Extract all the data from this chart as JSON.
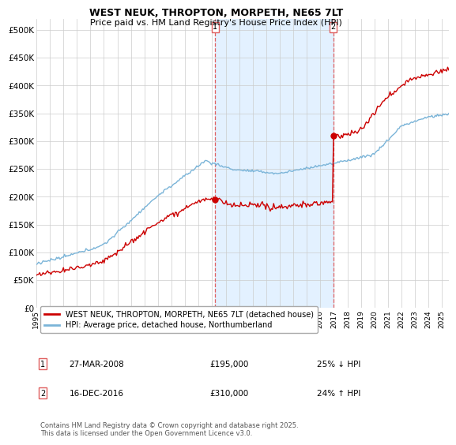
{
  "title": "WEST NEUK, THROPTON, MORPETH, NE65 7LT",
  "subtitle": "Price paid vs. HM Land Registry's House Price Index (HPI)",
  "ylabel_ticks": [
    "£0",
    "£50K",
    "£100K",
    "£150K",
    "£200K",
    "£250K",
    "£300K",
    "£350K",
    "£400K",
    "£450K",
    "£500K"
  ],
  "ytick_values": [
    0,
    50000,
    100000,
    150000,
    200000,
    250000,
    300000,
    350000,
    400000,
    450000,
    500000
  ],
  "ylim": [
    0,
    520000
  ],
  "xlim_start": 1995.0,
  "xlim_end": 2025.5,
  "xtick_years": [
    1995,
    1996,
    1997,
    1998,
    1999,
    2000,
    2001,
    2002,
    2003,
    2004,
    2005,
    2006,
    2007,
    2008,
    2009,
    2010,
    2011,
    2012,
    2013,
    2014,
    2015,
    2016,
    2017,
    2018,
    2019,
    2020,
    2021,
    2022,
    2023,
    2024,
    2025
  ],
  "hpi_color": "#7ab4d8",
  "price_color": "#cc0000",
  "sale1_x": 2008.23,
  "sale1_y": 195000,
  "sale1_label": "1",
  "sale1_date": "27-MAR-2008",
  "sale1_price": "£195,000",
  "sale1_hpi": "25% ↓ HPI",
  "sale2_x": 2016.96,
  "sale2_y": 310000,
  "sale2_label": "2",
  "sale2_date": "16-DEC-2016",
  "sale2_price": "£310,000",
  "sale2_hpi": "24% ↑ HPI",
  "vline_color": "#e06060",
  "shading_color": "#ddeeff",
  "legend_label_red": "WEST NEUK, THROPTON, MORPETH, NE65 7LT (detached house)",
  "legend_label_blue": "HPI: Average price, detached house, Northumberland",
  "footer": "Contains HM Land Registry data © Crown copyright and database right 2025.\nThis data is licensed under the Open Government Licence v3.0.",
  "background_color": "#ffffff",
  "grid_color": "#cccccc"
}
